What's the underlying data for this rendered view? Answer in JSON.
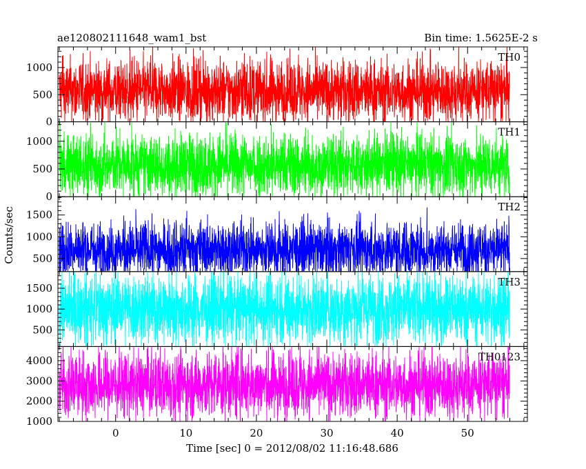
{
  "header": {
    "title": "ae120802111648_wam1_bst",
    "bin_time": "Bin time: 1.5625E-2 s"
  },
  "chart_data": {
    "type": "line",
    "title": "ae120802111648_wam1_bst",
    "subtitle": "Bin time: 1.5625E-2 s",
    "xlabel": "Time [sec] 0 = 2012/08/02 11:16:48.686",
    "ylabel": "Counts/sec",
    "xlim": [
      -8.2,
      58.5
    ],
    "data_x_range": [
      -8.0,
      56.0
    ],
    "bin_time": 0.015625,
    "x_ticks": [
      0,
      10,
      20,
      30,
      40,
      50
    ],
    "x_tick_labels": [
      "0",
      "10",
      "20",
      "30",
      "40",
      "50"
    ],
    "grid": false,
    "panels": [
      {
        "name": "TH0",
        "color": "#ff0000",
        "ylim": [
          0,
          1380
        ],
        "ticks": [
          0,
          500,
          1000
        ],
        "tick_labels": [
          "0",
          "500",
          "1000"
        ],
        "mean": 560,
        "spread": 300,
        "clip_min": 0,
        "clip_max": 1380
      },
      {
        "name": "TH1",
        "color": "#00ff00",
        "ylim": [
          0,
          1350
        ],
        "ticks": [
          0,
          500,
          1000
        ],
        "tick_labels": [
          "0",
          "500",
          "1000"
        ],
        "mean": 560,
        "spread": 300,
        "clip_min": 0,
        "clip_max": 1350
      },
      {
        "name": "TH2",
        "color": "#0000ff",
        "ylim": [
          200,
          1920
        ],
        "ticks": [
          500,
          1000,
          1500
        ],
        "tick_labels": [
          "500",
          "1000",
          "1500"
        ],
        "mean": 700,
        "spread": 330,
        "clip_min": 200,
        "clip_max": 1920
      },
      {
        "name": "TH3",
        "color": "#00ffff",
        "ylim": [
          100,
          1900
        ],
        "ticks": [
          500,
          1000,
          1500
        ],
        "tick_labels": [
          "500",
          "1000",
          "1500"
        ],
        "mean": 1000,
        "spread": 450,
        "clip_min": 100,
        "clip_max": 1900
      },
      {
        "name": "TH0123",
        "color": "#ff00ff",
        "ylim": [
          1000,
          4700
        ],
        "ticks": [
          1000,
          2000,
          3000,
          4000
        ],
        "tick_labels": [
          "1000",
          "2000",
          "3000",
          "4000"
        ],
        "mean": 2800,
        "spread": 850,
        "clip_min": 1000,
        "clip_max": 4700
      }
    ]
  }
}
